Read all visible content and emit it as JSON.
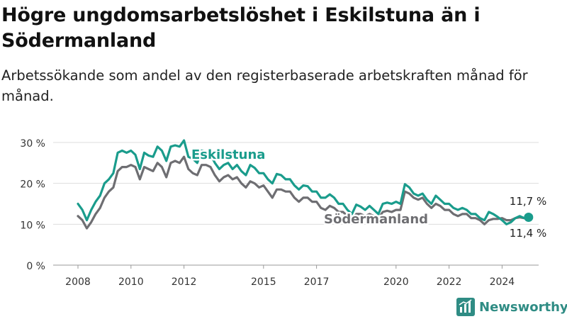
{
  "title": "Högre ungdomsarbetslöshet i Eskilstuna än i Södermanland",
  "subtitle": "Arbetssökande som andel av den registerbaserade arbetskraften månad för månad.",
  "brand": "Newsworthy",
  "chart_data": {
    "type": "line",
    "y_ticks": [
      "0 %",
      "10 %",
      "20 %",
      "30 %"
    ],
    "x_ticks": [
      "2008",
      "2010",
      "2012",
      "2015",
      "2017",
      "2020",
      "2022",
      "2024"
    ],
    "ylim": [
      0,
      30
    ],
    "grid": true,
    "series": [
      {
        "name": "Eskilstuna",
        "color": "#1a9c8c",
        "end_label": "11,7 %",
        "points": [
          [
            "2008-01",
            15.0
          ],
          [
            "2008-03",
            13.5
          ],
          [
            "2008-05",
            11.0
          ],
          [
            "2008-07",
            13.5
          ],
          [
            "2008-09",
            15.5
          ],
          [
            "2008-11",
            17.0
          ],
          [
            "2009-01",
            20.0
          ],
          [
            "2009-03",
            21.0
          ],
          [
            "2009-05",
            22.5
          ],
          [
            "2009-07",
            27.5
          ],
          [
            "2009-09",
            28.0
          ],
          [
            "2009-11",
            27.5
          ],
          [
            "2010-01",
            28.0
          ],
          [
            "2010-03",
            27.0
          ],
          [
            "2010-05",
            23.5
          ],
          [
            "2010-07",
            27.5
          ],
          [
            "2010-09",
            26.8
          ],
          [
            "2010-11",
            26.5
          ],
          [
            "2011-01",
            29.0
          ],
          [
            "2011-03",
            28.0
          ],
          [
            "2011-05",
            25.5
          ],
          [
            "2011-07",
            29.0
          ],
          [
            "2011-09",
            29.3
          ],
          [
            "2011-11",
            29.0
          ],
          [
            "2012-01",
            30.5
          ],
          [
            "2012-03",
            26.5
          ],
          [
            "2012-05",
            26.0
          ],
          [
            "2012-07",
            25.0
          ],
          [
            "2012-09",
            28.0
          ],
          [
            "2012-11",
            27.8
          ],
          [
            "2013-01",
            27.0
          ],
          [
            "2013-03",
            25.0
          ],
          [
            "2013-05",
            23.5
          ],
          [
            "2013-07",
            24.5
          ],
          [
            "2013-09",
            25.0
          ],
          [
            "2013-11",
            23.5
          ],
          [
            "2014-01",
            24.5
          ],
          [
            "2014-03",
            23.0
          ],
          [
            "2014-05",
            22.0
          ],
          [
            "2014-07",
            24.5
          ],
          [
            "2014-09",
            23.8
          ],
          [
            "2014-11",
            22.5
          ],
          [
            "2015-01",
            22.5
          ],
          [
            "2015-03",
            21.0
          ],
          [
            "2015-05",
            20.0
          ],
          [
            "2015-07",
            22.3
          ],
          [
            "2015-09",
            22.0
          ],
          [
            "2015-11",
            21.0
          ],
          [
            "2016-01",
            21.0
          ],
          [
            "2016-03",
            19.5
          ],
          [
            "2016-05",
            18.5
          ],
          [
            "2016-07",
            19.5
          ],
          [
            "2016-09",
            19.3
          ],
          [
            "2016-11",
            18.0
          ],
          [
            "2017-01",
            18.0
          ],
          [
            "2017-03",
            16.5
          ],
          [
            "2017-05",
            16.5
          ],
          [
            "2017-07",
            17.3
          ],
          [
            "2017-09",
            16.5
          ],
          [
            "2017-11",
            15.0
          ],
          [
            "2018-01",
            15.0
          ],
          [
            "2018-03",
            13.5
          ],
          [
            "2018-05",
            12.5
          ],
          [
            "2018-07",
            14.8
          ],
          [
            "2018-09",
            14.3
          ],
          [
            "2018-11",
            13.5
          ],
          [
            "2019-01",
            14.5
          ],
          [
            "2019-03",
            13.5
          ],
          [
            "2019-05",
            12.5
          ],
          [
            "2019-07",
            15.0
          ],
          [
            "2019-09",
            15.3
          ],
          [
            "2019-11",
            15.0
          ],
          [
            "2020-01",
            15.5
          ],
          [
            "2020-03",
            15.0
          ],
          [
            "2020-05",
            19.8
          ],
          [
            "2020-07",
            19.0
          ],
          [
            "2020-09",
            17.5
          ],
          [
            "2020-11",
            17.0
          ],
          [
            "2021-01",
            17.5
          ],
          [
            "2021-03",
            16.0
          ],
          [
            "2021-05",
            15.0
          ],
          [
            "2021-07",
            17.0
          ],
          [
            "2021-09",
            16.0
          ],
          [
            "2021-11",
            15.0
          ],
          [
            "2022-01",
            15.0
          ],
          [
            "2022-03",
            14.0
          ],
          [
            "2022-05",
            13.5
          ],
          [
            "2022-07",
            14.0
          ],
          [
            "2022-09",
            13.5
          ],
          [
            "2022-11",
            12.5
          ],
          [
            "2023-01",
            12.5
          ],
          [
            "2023-03",
            11.5
          ],
          [
            "2023-05",
            11.0
          ],
          [
            "2023-07",
            13.0
          ],
          [
            "2023-09",
            12.5
          ],
          [
            "2023-11",
            11.8
          ],
          [
            "2024-01",
            11.0
          ],
          [
            "2024-03",
            10.0
          ],
          [
            "2024-05",
            10.5
          ],
          [
            "2024-07",
            11.5
          ],
          [
            "2024-09",
            12.0
          ],
          [
            "2024-11",
            11.5
          ],
          [
            "2025-01",
            11.7
          ]
        ]
      },
      {
        "name": "Södermanland",
        "color": "#6e6e72",
        "end_label": "11,4 %",
        "points": [
          [
            "2008-01",
            12.0
          ],
          [
            "2008-03",
            11.0
          ],
          [
            "2008-05",
            9.0
          ],
          [
            "2008-07",
            10.5
          ],
          [
            "2008-09",
            12.5
          ],
          [
            "2008-11",
            14.0
          ],
          [
            "2009-01",
            16.5
          ],
          [
            "2009-03",
            18.0
          ],
          [
            "2009-05",
            19.0
          ],
          [
            "2009-07",
            23.0
          ],
          [
            "2009-09",
            24.0
          ],
          [
            "2009-11",
            24.0
          ],
          [
            "2010-01",
            24.5
          ],
          [
            "2010-03",
            24.0
          ],
          [
            "2010-05",
            21.0
          ],
          [
            "2010-07",
            24.0
          ],
          [
            "2010-09",
            23.5
          ],
          [
            "2010-11",
            23.0
          ],
          [
            "2011-01",
            25.0
          ],
          [
            "2011-03",
            24.0
          ],
          [
            "2011-05",
            21.5
          ],
          [
            "2011-07",
            25.0
          ],
          [
            "2011-09",
            25.5
          ],
          [
            "2011-11",
            25.0
          ],
          [
            "2012-01",
            26.5
          ],
          [
            "2012-03",
            23.5
          ],
          [
            "2012-05",
            22.5
          ],
          [
            "2012-07",
            22.0
          ],
          [
            "2012-09",
            24.5
          ],
          [
            "2012-11",
            24.5
          ],
          [
            "2013-01",
            24.0
          ],
          [
            "2013-03",
            22.0
          ],
          [
            "2013-05",
            20.5
          ],
          [
            "2013-07",
            21.5
          ],
          [
            "2013-09",
            22.0
          ],
          [
            "2013-11",
            21.0
          ],
          [
            "2014-01",
            21.5
          ],
          [
            "2014-03",
            20.0
          ],
          [
            "2014-05",
            19.0
          ],
          [
            "2014-07",
            20.5
          ],
          [
            "2014-09",
            20.0
          ],
          [
            "2014-11",
            19.0
          ],
          [
            "2015-01",
            19.5
          ],
          [
            "2015-03",
            18.0
          ],
          [
            "2015-05",
            16.5
          ],
          [
            "2015-07",
            18.5
          ],
          [
            "2015-09",
            18.5
          ],
          [
            "2015-11",
            18.0
          ],
          [
            "2016-01",
            18.0
          ],
          [
            "2016-03",
            16.5
          ],
          [
            "2016-05",
            15.5
          ],
          [
            "2016-07",
            16.5
          ],
          [
            "2016-09",
            16.5
          ],
          [
            "2016-11",
            15.5
          ],
          [
            "2017-01",
            15.5
          ],
          [
            "2017-03",
            14.0
          ],
          [
            "2017-05",
            13.5
          ],
          [
            "2017-07",
            14.5
          ],
          [
            "2017-09",
            14.0
          ],
          [
            "2017-11",
            13.0
          ],
          [
            "2018-01",
            13.0
          ],
          [
            "2018-03",
            12.0
          ],
          [
            "2018-05",
            11.0
          ],
          [
            "2018-07",
            12.5
          ],
          [
            "2018-09",
            12.5
          ],
          [
            "2018-11",
            12.0
          ],
          [
            "2019-01",
            12.5
          ],
          [
            "2019-03",
            12.0
          ],
          [
            "2019-05",
            11.5
          ],
          [
            "2019-07",
            13.0
          ],
          [
            "2019-09",
            13.3
          ],
          [
            "2019-11",
            13.0
          ],
          [
            "2020-01",
            13.5
          ],
          [
            "2020-03",
            13.5
          ],
          [
            "2020-05",
            18.0
          ],
          [
            "2020-07",
            17.5
          ],
          [
            "2020-09",
            16.5
          ],
          [
            "2020-11",
            16.0
          ],
          [
            "2021-01",
            16.5
          ],
          [
            "2021-03",
            15.0
          ],
          [
            "2021-05",
            14.0
          ],
          [
            "2021-07",
            15.0
          ],
          [
            "2021-09",
            14.5
          ],
          [
            "2021-11",
            13.5
          ],
          [
            "2022-01",
            13.5
          ],
          [
            "2022-03",
            12.5
          ],
          [
            "2022-05",
            12.0
          ],
          [
            "2022-07",
            12.5
          ],
          [
            "2022-09",
            12.5
          ],
          [
            "2022-11",
            11.5
          ],
          [
            "2023-01",
            11.5
          ],
          [
            "2023-03",
            11.0
          ],
          [
            "2023-05",
            10.0
          ],
          [
            "2023-07",
            11.0
          ],
          [
            "2023-09",
            11.3
          ],
          [
            "2023-11",
            11.3
          ],
          [
            "2024-01",
            11.5
          ],
          [
            "2024-03",
            11.0
          ],
          [
            "2024-05",
            11.0
          ],
          [
            "2024-07",
            11.5
          ],
          [
            "2024-09",
            11.7
          ],
          [
            "2024-11",
            11.5
          ],
          [
            "2025-01",
            11.4
          ]
        ]
      }
    ]
  }
}
